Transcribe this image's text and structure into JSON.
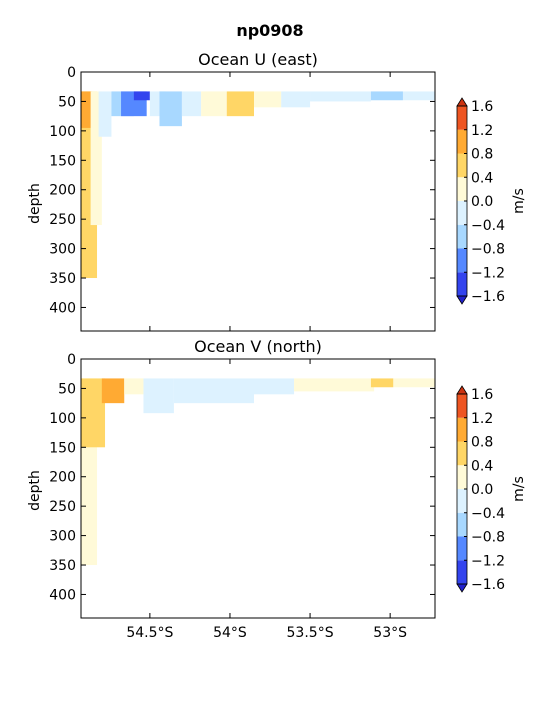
{
  "suptitle": "np0908",
  "chart_data": [
    {
      "type": "heatmap",
      "title": "Ocean U (east)",
      "ylabel": "depth",
      "xlabel": "",
      "x_ticks": [
        "54.5°S",
        "54°S",
        "53.5°S",
        "53°S"
      ],
      "y_ticks": [
        "0",
        "50",
        "100",
        "150",
        "200",
        "250",
        "300",
        "350",
        "400"
      ],
      "xlim": [
        -54.93,
        -52.72
      ],
      "ylim": [
        440,
        0
      ],
      "grid": false,
      "colorbar": {
        "label": "m/s",
        "levels": [
          -1.6,
          -1.2,
          -0.8,
          -0.4,
          0.0,
          0.4,
          0.8,
          1.2,
          1.6
        ],
        "tick_labels": [
          "−1.6",
          "−1.2",
          "−0.8",
          "−0.4",
          "0.0",
          "0.4",
          "0.8",
          "1.2",
          "1.6"
        ],
        "colors": [
          "#3344ee",
          "#5588ff",
          "#a8d8ff",
          "#ddf2ff",
          "#fffad8",
          "#ffd666",
          "#ffaa33",
          "#ee5522"
        ],
        "extend": "both"
      },
      "regions": [
        {
          "lat_min": -54.93,
          "lat_max": -54.83,
          "depth_min": 33,
          "depth_max": 350,
          "value": 0.6
        },
        {
          "lat_min": -54.93,
          "lat_max": -54.86,
          "depth_min": 33,
          "depth_max": 95,
          "value": 1.0
        },
        {
          "lat_min": -54.87,
          "lat_max": -54.8,
          "depth_min": 33,
          "depth_max": 260,
          "value": 0.2
        },
        {
          "lat_min": -54.82,
          "lat_max": -54.74,
          "depth_min": 33,
          "depth_max": 110,
          "value": -0.2
        },
        {
          "lat_min": -54.74,
          "lat_max": -54.6,
          "depth_min": 33,
          "depth_max": 75,
          "value": -0.6
        },
        {
          "lat_min": -54.68,
          "lat_max": -54.52,
          "depth_min": 33,
          "depth_max": 75,
          "value": -1.0
        },
        {
          "lat_min": -54.6,
          "lat_max": -54.5,
          "depth_min": 33,
          "depth_max": 48,
          "value": -1.4
        },
        {
          "lat_min": -54.5,
          "lat_max": -54.4,
          "depth_min": 33,
          "depth_max": 75,
          "value": -0.2
        },
        {
          "lat_min": -54.44,
          "lat_max": -54.3,
          "depth_min": 33,
          "depth_max": 92,
          "value": -0.6
        },
        {
          "lat_min": -54.3,
          "lat_max": -54.18,
          "depth_min": 33,
          "depth_max": 75,
          "value": -0.2
        },
        {
          "lat_min": -54.18,
          "lat_max": -54.02,
          "depth_min": 33,
          "depth_max": 75,
          "value": 0.2
        },
        {
          "lat_min": -54.02,
          "lat_max": -53.85,
          "depth_min": 33,
          "depth_max": 75,
          "value": 0.6
        },
        {
          "lat_min": -53.85,
          "lat_max": -53.68,
          "depth_min": 33,
          "depth_max": 60,
          "value": 0.2
        },
        {
          "lat_min": -53.68,
          "lat_max": -53.5,
          "depth_min": 33,
          "depth_max": 60,
          "value": -0.2
        },
        {
          "lat_min": -53.5,
          "lat_max": -53.12,
          "depth_min": 33,
          "depth_max": 50,
          "value": -0.2
        },
        {
          "lat_min": -53.12,
          "lat_max": -52.92,
          "depth_min": 33,
          "depth_max": 48,
          "value": -0.6
        },
        {
          "lat_min": -52.92,
          "lat_max": -52.72,
          "depth_min": 33,
          "depth_max": 48,
          "value": -0.2
        }
      ]
    },
    {
      "type": "heatmap",
      "title": "Ocean V (north)",
      "ylabel": "depth",
      "xlabel": "",
      "x_ticks": [
        "54.5°S",
        "54°S",
        "53.5°S",
        "53°S"
      ],
      "y_ticks": [
        "0",
        "50",
        "100",
        "150",
        "200",
        "250",
        "300",
        "350",
        "400"
      ],
      "xlim": [
        -54.93,
        -52.72
      ],
      "ylim": [
        440,
        0
      ],
      "grid": false,
      "colorbar": {
        "label": "m/s",
        "levels": [
          -1.6,
          -1.2,
          -0.8,
          -0.4,
          0.0,
          0.4,
          0.8,
          1.2,
          1.6
        ],
        "tick_labels": [
          "−1.6",
          "−1.2",
          "−0.8",
          "−0.4",
          "0.0",
          "0.4",
          "0.8",
          "1.2",
          "1.6"
        ],
        "colors": [
          "#3344ee",
          "#5588ff",
          "#a8d8ff",
          "#ddf2ff",
          "#fffad8",
          "#ffd666",
          "#ffaa33",
          "#ee5522"
        ],
        "extend": "both"
      },
      "regions": [
        {
          "lat_min": -54.93,
          "lat_max": -54.83,
          "depth_min": 33,
          "depth_max": 350,
          "value": 0.2
        },
        {
          "lat_min": -54.93,
          "lat_max": -54.78,
          "depth_min": 33,
          "depth_max": 150,
          "value": 0.6
        },
        {
          "lat_min": -54.8,
          "lat_max": -54.66,
          "depth_min": 33,
          "depth_max": 75,
          "value": 1.0
        },
        {
          "lat_min": -54.66,
          "lat_max": -54.54,
          "depth_min": 33,
          "depth_max": 60,
          "value": 0.2
        },
        {
          "lat_min": -54.54,
          "lat_max": -54.35,
          "depth_min": 33,
          "depth_max": 92,
          "value": -0.2
        },
        {
          "lat_min": -54.35,
          "lat_max": -53.85,
          "depth_min": 33,
          "depth_max": 75,
          "value": -0.2
        },
        {
          "lat_min": -53.85,
          "lat_max": -53.6,
          "depth_min": 33,
          "depth_max": 60,
          "value": -0.2
        },
        {
          "lat_min": -53.6,
          "lat_max": -53.1,
          "depth_min": 33,
          "depth_max": 55,
          "value": 0.2
        },
        {
          "lat_min": -53.12,
          "lat_max": -52.98,
          "depth_min": 33,
          "depth_max": 48,
          "value": 0.6
        },
        {
          "lat_min": -52.98,
          "lat_max": -52.72,
          "depth_min": 33,
          "depth_max": 48,
          "value": 0.2
        }
      ]
    }
  ]
}
